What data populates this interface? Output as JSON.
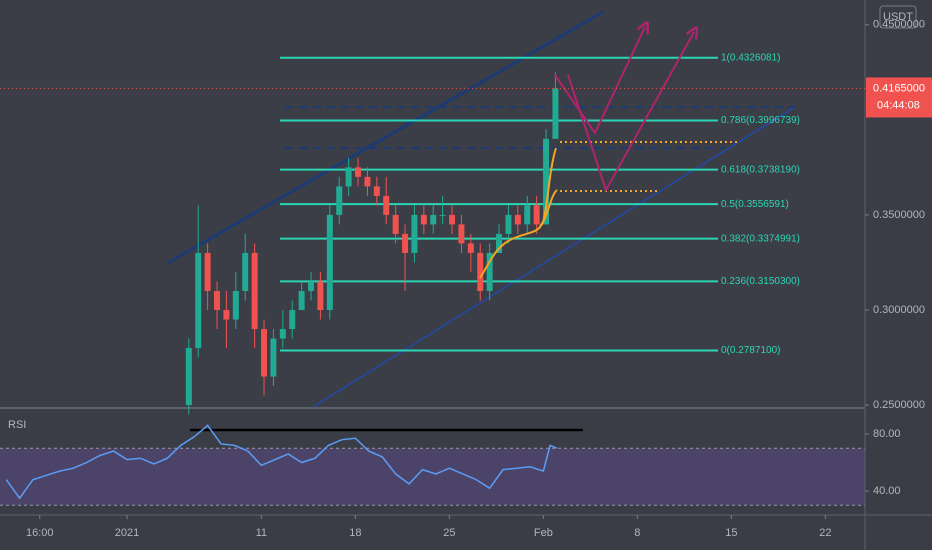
{
  "chart_data": {
    "type": "candlestick",
    "currency": "USDT",
    "x": [
      4.6,
      5.3,
      6,
      6.7,
      7.4,
      8.1,
      8.8,
      9.5,
      10.2,
      10.9,
      11.6,
      12.3,
      13,
      13.7,
      14.4,
      15.1,
      15.8,
      16.5,
      17.2,
      17.9,
      18.6,
      19.3,
      20,
      20.7,
      21.4,
      22.1,
      22.8,
      23.5,
      24.2,
      24.9,
      25.6,
      26.3,
      27,
      27.7,
      28.4,
      29.1,
      29.8,
      30.5,
      31.2,
      31.9
    ],
    "open": [
      0.25,
      0.28,
      0.33,
      0.31,
      0.3,
      0.295,
      0.31,
      0.33,
      0.29,
      0.265,
      0.285,
      0.29,
      0.3,
      0.31,
      0.315,
      0.3,
      0.35,
      0.365,
      0.375,
      0.37,
      0.365,
      0.36,
      0.35,
      0.34,
      0.33,
      0.35,
      0.345,
      0.35,
      0.35,
      0.345,
      0.335,
      0.33,
      0.31,
      0.33,
      0.34,
      0.35,
      0.345,
      0.355,
      0.345,
      0.39
    ],
    "high": [
      0.285,
      0.355,
      0.335,
      0.315,
      0.31,
      0.32,
      0.34,
      0.335,
      0.295,
      0.29,
      0.3,
      0.305,
      0.315,
      0.32,
      0.32,
      0.355,
      0.37,
      0.38,
      0.38,
      0.375,
      0.37,
      0.37,
      0.355,
      0.345,
      0.355,
      0.355,
      0.355,
      0.36,
      0.355,
      0.35,
      0.34,
      0.335,
      0.335,
      0.345,
      0.355,
      0.355,
      0.36,
      0.36,
      0.395,
      0.425
    ],
    "low": [
      0.245,
      0.275,
      0.3,
      0.29,
      0.28,
      0.29,
      0.305,
      0.28,
      0.255,
      0.26,
      0.28,
      0.285,
      0.3,
      0.305,
      0.295,
      0.295,
      0.345,
      0.36,
      0.365,
      0.36,
      0.355,
      0.345,
      0.335,
      0.31,
      0.325,
      0.34,
      0.34,
      0.345,
      0.34,
      0.33,
      0.32,
      0.305,
      0.305,
      0.33,
      0.335,
      0.34,
      0.34,
      0.34,
      0.345,
      0.39
    ],
    "close": [
      0.28,
      0.33,
      0.31,
      0.3,
      0.295,
      0.31,
      0.33,
      0.29,
      0.265,
      0.285,
      0.29,
      0.3,
      0.31,
      0.315,
      0.3,
      0.35,
      0.365,
      0.375,
      0.37,
      0.365,
      0.36,
      0.35,
      0.34,
      0.33,
      0.35,
      0.345,
      0.35,
      0.35,
      0.345,
      0.335,
      0.33,
      0.31,
      0.33,
      0.34,
      0.35,
      0.345,
      0.355,
      0.345,
      0.39,
      0.4165
    ],
    "up_color": "#22ab94",
    "down_color": "#f0534f",
    "xlim": [
      -9.46,
      54.95
    ],
    "xticks": [
      {
        "value": -6.5,
        "label": "16:00"
      },
      {
        "value": 0,
        "label": "2021"
      },
      {
        "value": 10,
        "label": "11"
      },
      {
        "value": 17,
        "label": "18"
      },
      {
        "value": 24,
        "label": "25"
      },
      {
        "value": 31,
        "label": "Feb"
      },
      {
        "value": 38,
        "label": "8"
      },
      {
        "value": 45,
        "label": "15"
      },
      {
        "value": 52,
        "label": "22"
      }
    ],
    "ylim": [
      0.249,
      0.463
    ],
    "yticks": [
      {
        "value": 0.45,
        "label": "0.4500000"
      },
      {
        "value": 0.35,
        "label": "0.3500000"
      },
      {
        "value": 0.3,
        "label": "0.3000000"
      },
      {
        "value": 0.25,
        "label": "0.2500000"
      }
    ],
    "last_price": {
      "value": 0.4165,
      "label": "0.4165000"
    },
    "countdown": "04:44:08",
    "fib_color": "#2bd6b4",
    "fib_levels": [
      {
        "value": 0.4326081,
        "label": "1(0.4326081)"
      },
      {
        "value": 0.3996739,
        "label": "0.786(0.3996739)"
      },
      {
        "value": 0.373819,
        "label": "0.618(0.3738190)"
      },
      {
        "value": 0.3556591,
        "label": "0.5(0.3556591)"
      },
      {
        "value": 0.3374991,
        "label": "0.382(0.3374991)"
      },
      {
        "value": 0.31503,
        "label": "0.236(0.3150300)"
      },
      {
        "value": 0.27871,
        "label": "0(0.2787100)"
      }
    ],
    "indicator": {
      "type": "line",
      "name": "RSI",
      "color": "#5b9cf6",
      "x": [
        -9,
        -8,
        -7,
        -6,
        -5,
        -4,
        -3,
        -2,
        -1,
        0,
        1,
        2,
        3,
        4,
        5,
        6,
        7,
        8,
        9,
        10,
        11,
        12,
        13,
        14,
        15,
        16,
        17,
        18,
        19,
        20,
        21,
        22,
        23,
        24,
        25,
        26,
        27,
        28,
        29,
        30,
        31,
        31.5,
        32
      ],
      "values": [
        48,
        35,
        48,
        51,
        54,
        56,
        60,
        65,
        68,
        62,
        63,
        59,
        63,
        72,
        78,
        86,
        73,
        72,
        68,
        58,
        62,
        66,
        60,
        63,
        72,
        76,
        77,
        68,
        64,
        52,
        45,
        55,
        52,
        56,
        52,
        48,
        42,
        55,
        56,
        57,
        54,
        72,
        70
      ],
      "ylim": [
        23.2,
        98.2
      ],
      "yticks": [
        {
          "value": 80,
          "label": "80.00"
        },
        {
          "value": 40,
          "label": "40.00"
        }
      ],
      "band_levels": [
        30,
        70
      ]
    }
  }
}
